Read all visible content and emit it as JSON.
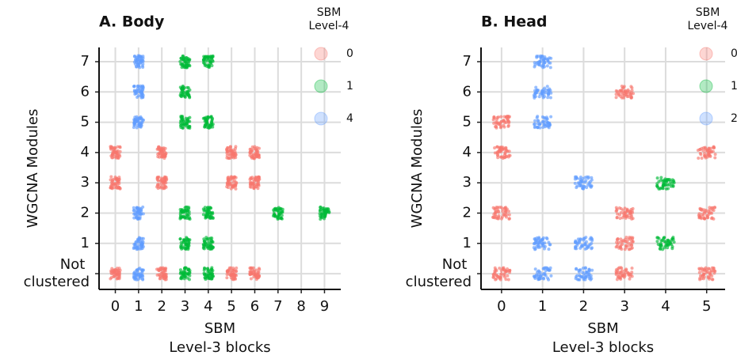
{
  "chart_data": [
    {
      "type": "scatter",
      "title": "A. Body",
      "xlabel": [
        "SBM",
        "Level-3 blocks"
      ],
      "ylabel": "WGCNA Modules",
      "legend_title": [
        "SBM",
        "Level-4"
      ],
      "xlim": [
        -0.7,
        9.7
      ],
      "ylim": [
        -0.52,
        7.47
      ],
      "xticks": [
        0,
        1,
        2,
        3,
        4,
        5,
        6,
        7,
        8,
        9
      ],
      "yticks": [
        {
          "value": 0,
          "label": "Not clustered"
        },
        1,
        2,
        3,
        4,
        5,
        6,
        7
      ],
      "grid": true,
      "series": [
        {
          "name": "0",
          "color": "#F8766D",
          "x": [
            0,
            0,
            0,
            2,
            2,
            2,
            5,
            5,
            5,
            6,
            6,
            6
          ],
          "y": [
            0,
            3,
            4,
            0,
            3,
            4,
            0,
            3,
            4,
            0,
            3,
            4
          ]
        },
        {
          "name": "1",
          "color": "#00BA38",
          "x": [
            3,
            3,
            3,
            3,
            3,
            3,
            4,
            4,
            4,
            4,
            4,
            7,
            9
          ],
          "y": [
            0,
            1,
            2,
            5,
            6,
            7,
            0,
            1,
            2,
            5,
            7,
            2,
            2
          ]
        },
        {
          "name": "4",
          "color": "#619CFF",
          "x": [
            1,
            1,
            1,
            1,
            1,
            1
          ],
          "y": [
            0,
            1,
            2,
            5,
            6,
            7
          ]
        }
      ]
    },
    {
      "type": "scatter",
      "title": "B. Head",
      "xlabel": [
        "SBM",
        "Level-3 blocks"
      ],
      "ylabel": "WGCNA Modules",
      "legend_title": [
        "SBM",
        "Level-4"
      ],
      "xlim": [
        -0.5,
        5.45
      ],
      "ylim": [
        -0.52,
        7.47
      ],
      "xticks": [
        0,
        1,
        2,
        3,
        4,
        5
      ],
      "yticks": [
        {
          "value": 0,
          "label": "Not clustered"
        },
        1,
        2,
        3,
        4,
        5,
        6,
        7
      ],
      "grid": true,
      "series": [
        {
          "name": "0",
          "color": "#F8766D",
          "x": [
            0,
            0,
            0,
            0,
            3,
            3,
            3,
            3,
            5,
            5,
            5
          ],
          "y": [
            0,
            2,
            4,
            5,
            0,
            1,
            2,
            6,
            0,
            2,
            4
          ]
        },
        {
          "name": "1",
          "color": "#00BA38",
          "x": [
            4,
            4
          ],
          "y": [
            1,
            3
          ]
        },
        {
          "name": "2",
          "color": "#619CFF",
          "x": [
            1,
            1,
            1,
            1,
            1,
            2,
            2,
            2
          ],
          "y": [
            0,
            1,
            5,
            6,
            7,
            0,
            1,
            3
          ]
        }
      ]
    }
  ]
}
